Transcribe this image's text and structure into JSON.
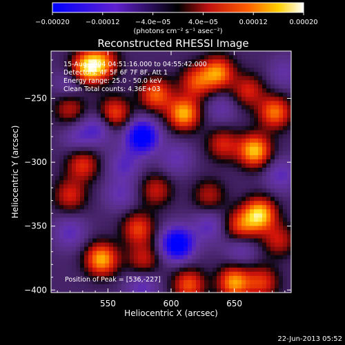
{
  "chart_data": {
    "type": "heatmap",
    "title": "Reconstructed RHESSI Image",
    "xlabel": "Heliocentric X (arcsec)",
    "ylabel": "Heliocentric Y (arcsec)",
    "xlim": [
      505,
      695
    ],
    "ylim": [
      -402,
      -213
    ],
    "x_ticks": [
      550,
      600,
      650
    ],
    "y_ticks": [
      -250,
      -300,
      -350,
      -400
    ],
    "colorbar": {
      "ticks": [
        "-0.00020",
        "-0.00012",
        "−4.0e−05",
        "4.0e−05",
        "0.00012",
        "0.00020"
      ],
      "range": [
        -0.0002,
        0.0002
      ],
      "unit_label": "(photons cm⁻² s⁻¹ asec⁻²)"
    },
    "annotations": {
      "line1": "15-Aug-2004 04:51:16.000 to 04:55:42.000",
      "line2": "Detectors: 4F 5F 6F 7F 8F, Att 1",
      "line3": "Energy range: 25.0 - 50.0 keV",
      "line4": "Clean     Total counts: 4.36E+03",
      "peak": "Position of Peak = [536,-227]"
    },
    "timestamp": "22-Jun-2013 05:52",
    "blobs": [
      {
        "x": 534,
        "y": -226,
        "v": 0.00019
      },
      {
        "x": 546,
        "y": -222,
        "v": 0.00012
      },
      {
        "x": 555,
        "y": -262,
        "v": 0.00013
      },
      {
        "x": 588,
        "y": -247,
        "v": 0.00014
      },
      {
        "x": 620,
        "y": -237,
        "v": 0.00012
      },
      {
        "x": 637,
        "y": -230,
        "v": 0.00016
      },
      {
        "x": 610,
        "y": -262,
        "v": 0.00018
      },
      {
        "x": 661,
        "y": -244,
        "v": 0.0001
      },
      {
        "x": 682,
        "y": -261,
        "v": 0.00015
      },
      {
        "x": 641,
        "y": -286,
        "v": 0.0001
      },
      {
        "x": 666,
        "y": -291,
        "v": 0.00019
      },
      {
        "x": 530,
        "y": -302,
        "v": 0.00011
      },
      {
        "x": 520,
        "y": -258,
        "v": 9e-05
      },
      {
        "x": 520,
        "y": -326,
        "v": 0.0001
      },
      {
        "x": 588,
        "y": -322,
        "v": 9e-05
      },
      {
        "x": 630,
        "y": -326,
        "v": 8e-05
      },
      {
        "x": 670,
        "y": -341,
        "v": 0.0002
      },
      {
        "x": 655,
        "y": -350,
        "v": 0.00012
      },
      {
        "x": 685,
        "y": -361,
        "v": 9e-05
      },
      {
        "x": 574,
        "y": -352,
        "v": 0.00012
      },
      {
        "x": 545,
        "y": -376,
        "v": 0.00018
      },
      {
        "x": 578,
        "y": -376,
        "v": 9e-05
      },
      {
        "x": 614,
        "y": -396,
        "v": 0.00013
      },
      {
        "x": 650,
        "y": -394,
        "v": 0.00017
      },
      {
        "x": 672,
        "y": -394,
        "v": 0.00011
      },
      {
        "x": 577,
        "y": -280,
        "v": -0.0002
      },
      {
        "x": 543,
        "y": -273,
        "v": -8e-05
      },
      {
        "x": 527,
        "y": -280,
        "v": -6e-05
      },
      {
        "x": 563,
        "y": -302,
        "v": -7e-05
      },
      {
        "x": 604,
        "y": -297,
        "v": -6e-05
      },
      {
        "x": 605,
        "y": -364,
        "v": -0.0002
      },
      {
        "x": 630,
        "y": -350,
        "v": -7e-05
      },
      {
        "x": 577,
        "y": -398,
        "v": -7e-05
      },
      {
        "x": 520,
        "y": -355,
        "v": -7e-05
      },
      {
        "x": 560,
        "y": -325,
        "v": -6e-05
      },
      {
        "x": 687,
        "y": -310,
        "v": -7e-05
      },
      {
        "x": 640,
        "y": -258,
        "v": -5e-05
      },
      {
        "x": 655,
        "y": -368,
        "v": -6e-05
      },
      {
        "x": 520,
        "y": -240,
        "v": -5e-05
      },
      {
        "x": 690,
        "y": -230,
        "v": -5e-05
      }
    ]
  }
}
